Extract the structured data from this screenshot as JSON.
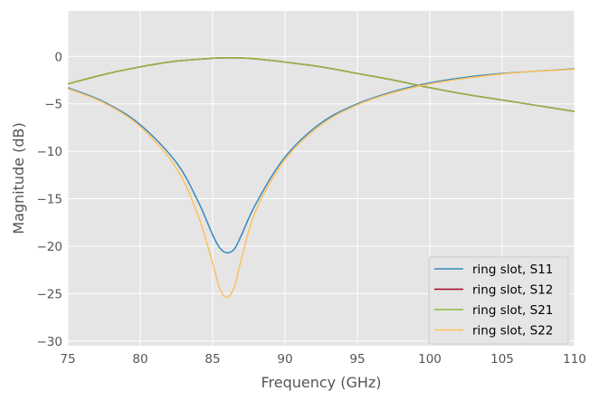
{
  "chart_data": {
    "type": "line",
    "title": "",
    "xlabel": "Frequency (GHz)",
    "ylabel": "Magnitude (dB)",
    "xlim": [
      75,
      110
    ],
    "ylim": [
      -30.5,
      4.8
    ],
    "xticks": [
      75,
      80,
      85,
      90,
      95,
      100,
      105,
      110
    ],
    "yticks": [
      0,
      -5,
      -10,
      -15,
      -20,
      -25,
      -30
    ],
    "grid": true,
    "legend_position": "lower-right",
    "colors": {
      "background": "#e5e5e5",
      "grid": "#ffffff",
      "s11": "#348abd",
      "s12": "#a60628",
      "s21": "#8eba42",
      "s22": "#fbc15e"
    },
    "series": [
      {
        "name": "ring slot, S11",
        "color": "#348abd",
        "x": [
          75,
          77.5,
          80,
          82.5,
          84,
          85,
          85.5,
          86,
          86.5,
          87,
          88,
          90,
          92.5,
          95,
          97.5,
          100,
          102.5,
          105,
          107.5,
          110
        ],
        "y": [
          -3.3,
          -4.8,
          -7.2,
          -11.2,
          -15.3,
          -18.8,
          -20.2,
          -20.7,
          -20.3,
          -18.8,
          -15.5,
          -10.6,
          -7.0,
          -5.0,
          -3.7,
          -2.8,
          -2.2,
          -1.8,
          -1.55,
          -1.3
        ]
      },
      {
        "name": "ring slot, S12",
        "color": "#a60628",
        "x": [
          75,
          77.5,
          80,
          82.5,
          85,
          86,
          87.5,
          90,
          92.5,
          95,
          97.5,
          100,
          102.5,
          105,
          107.5,
          110
        ],
        "y": [
          -2.9,
          -1.9,
          -1.1,
          -0.5,
          -0.2,
          -0.15,
          -0.2,
          -0.6,
          -1.1,
          -1.8,
          -2.5,
          -3.3,
          -4.0,
          -4.6,
          -5.2,
          -5.8
        ]
      },
      {
        "name": "ring slot, S21",
        "color": "#8eba42",
        "x": [
          75,
          77.5,
          80,
          82.5,
          85,
          86,
          87.5,
          90,
          92.5,
          95,
          97.5,
          100,
          102.5,
          105,
          107.5,
          110
        ],
        "y": [
          -2.9,
          -1.9,
          -1.1,
          -0.5,
          -0.2,
          -0.15,
          -0.2,
          -0.6,
          -1.1,
          -1.8,
          -2.5,
          -3.3,
          -4.0,
          -4.6,
          -5.2,
          -5.8
        ]
      },
      {
        "name": "ring slot, S22",
        "color": "#fbc15e",
        "x": [
          75,
          77.5,
          80,
          82.5,
          84,
          85,
          85.5,
          86,
          86.5,
          87,
          88,
          90,
          92.5,
          95,
          97.5,
          100,
          102.5,
          105,
          107.5,
          110
        ],
        "y": [
          -3.4,
          -4.9,
          -7.4,
          -11.8,
          -16.8,
          -21.8,
          -24.5,
          -25.4,
          -24.3,
          -21.3,
          -16.2,
          -10.9,
          -7.2,
          -5.1,
          -3.8,
          -2.9,
          -2.3,
          -1.85,
          -1.55,
          -1.35
        ]
      }
    ]
  }
}
